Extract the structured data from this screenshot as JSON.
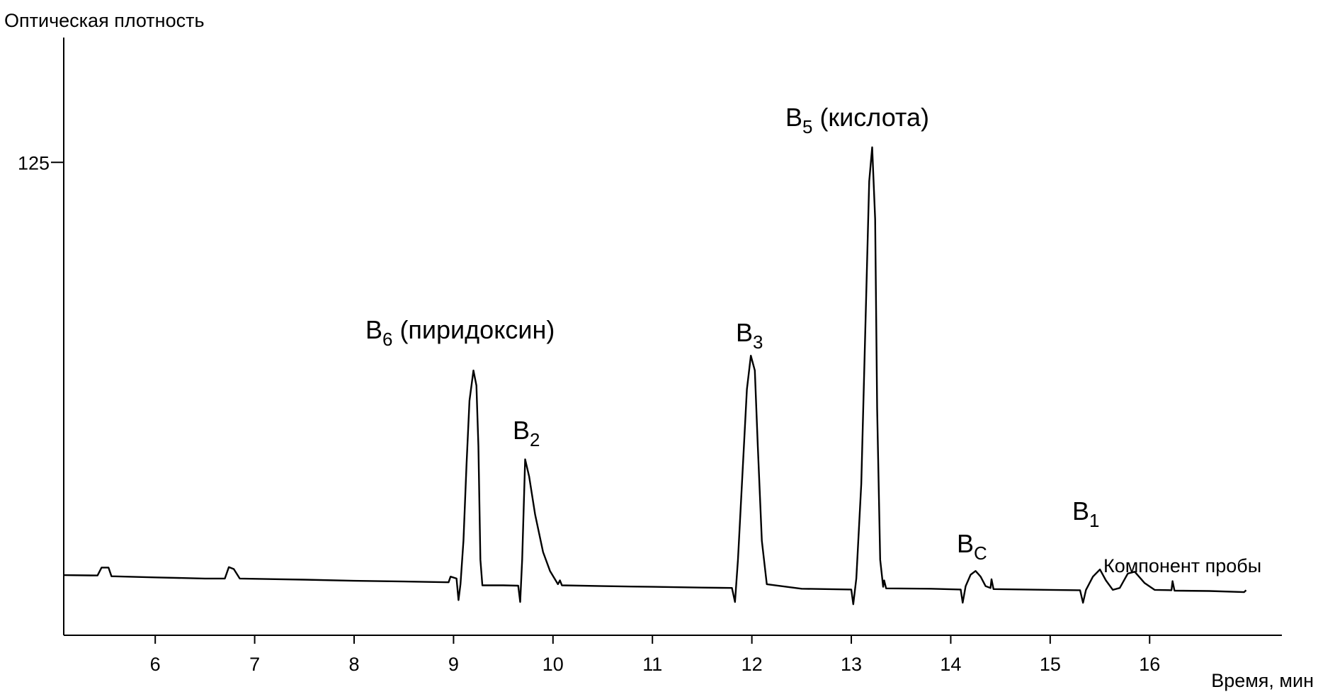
{
  "chart_data": {
    "type": "line",
    "ylabel": "Оптическая плотность",
    "xlabel": "Время, мин",
    "xlim": [
      5.08,
      17.33
    ],
    "ylim": [
      0,
      158
    ],
    "xticks": [
      6,
      7,
      8,
      9,
      10,
      11,
      12,
      13,
      14,
      15,
      16
    ],
    "yticks": [
      125
    ],
    "grid": false,
    "series": [
      {
        "color": "#000000",
        "x": [
          5.08,
          5.42,
          5.46,
          5.53,
          5.56,
          6.0,
          6.5,
          6.7,
          6.74,
          6.79,
          6.85,
          7.5,
          8.0,
          8.5,
          8.95,
          8.97,
          9.03,
          9.05,
          9.07,
          9.1,
          9.13,
          9.16,
          9.2,
          9.23,
          9.25,
          9.27,
          9.29,
          9.5,
          9.65,
          9.67,
          9.69,
          9.72,
          9.76,
          9.82,
          9.9,
          9.97,
          10.05,
          10.07,
          10.09,
          10.5,
          11.0,
          11.5,
          11.8,
          11.83,
          11.86,
          11.9,
          11.95,
          11.99,
          12.03,
          12.06,
          12.1,
          12.15,
          12.5,
          13.0,
          13.02,
          13.05,
          13.1,
          13.15,
          13.18,
          13.21,
          13.24,
          13.26,
          13.29,
          13.32,
          13.33,
          13.35,
          13.8,
          14.1,
          14.12,
          14.15,
          14.2,
          14.25,
          14.3,
          14.35,
          14.4,
          14.41,
          14.43,
          15.0,
          15.3,
          15.33,
          15.36,
          15.43,
          15.5,
          15.56,
          15.63,
          15.7,
          15.78,
          15.85,
          15.95,
          16.05,
          16.22,
          16.23,
          16.25,
          16.6,
          16.95,
          16.97
        ],
        "values": [
          15.9,
          15.8,
          17.9,
          17.9,
          15.6,
          15.3,
          15.0,
          15.0,
          18.0,
          17.5,
          15.0,
          14.7,
          14.4,
          14.2,
          14.0,
          15.5,
          15.0,
          9.3,
          13.5,
          25,
          45,
          62,
          70,
          66,
          50,
          20,
          13.2,
          13.2,
          13.1,
          8.8,
          20,
          46.5,
          42,
          32,
          22,
          17,
          13.5,
          14.5,
          13.2,
          13.0,
          12.8,
          12.6,
          12.5,
          8.8,
          20,
          40,
          65,
          73.9,
          70,
          50,
          25,
          13.5,
          12.3,
          12.1,
          8.2,
          15,
          40,
          90,
          120,
          129,
          110,
          60,
          20,
          12.8,
          14.5,
          12.4,
          12.3,
          12.1,
          8.6,
          13,
          16,
          17,
          15.5,
          13,
          12.5,
          14.8,
          12.2,
          12.0,
          11.9,
          8.6,
          12,
          15.5,
          17.4,
          14.5,
          12,
          12.5,
          16.3,
          16.8,
          13.8,
          12,
          11.9,
          14.3,
          11.8,
          11.7,
          11.4,
          11.9
        ]
      }
    ],
    "annotations": [
      {
        "text": "B",
        "sub": "6",
        "rest": "(пиридоксин)"
      },
      {
        "text": "B",
        "sub": "2"
      },
      {
        "text": "B",
        "sub": "3"
      },
      {
        "text": "B",
        "sub": "5",
        "rest": "(кислота)"
      },
      {
        "text": "B",
        "sub": "C"
      },
      {
        "text": "B",
        "sub": "1"
      },
      {
        "text": "Компонент пробы"
      }
    ]
  }
}
